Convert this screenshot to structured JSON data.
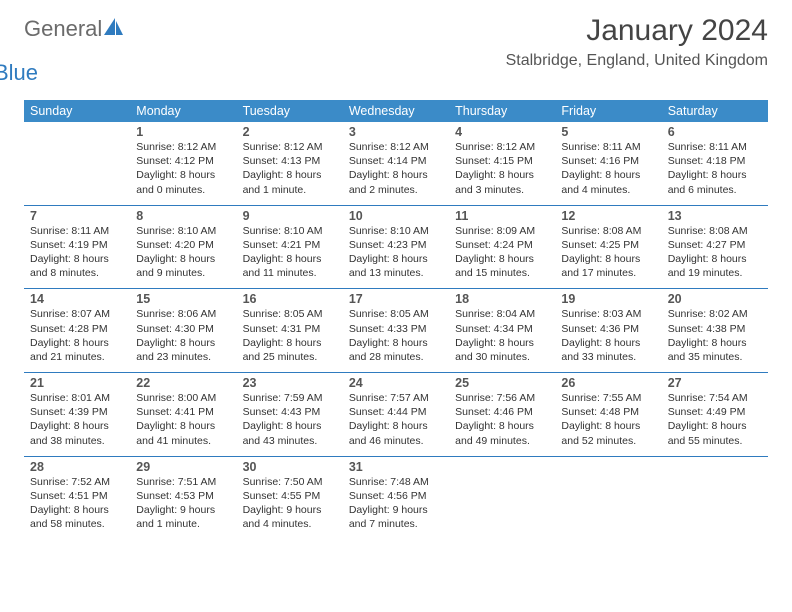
{
  "brand": {
    "word1": "General",
    "word2": "Blue",
    "color_general": "#6b6b6b",
    "color_blue": "#2f7bbf",
    "sail_color": "#2f7bbf"
  },
  "header": {
    "title": "January 2024",
    "subtitle": "Stalbridge, England, United Kingdom"
  },
  "theme": {
    "header_bg": "#3b8bc8",
    "header_fg": "#ffffff",
    "divider": "#2f7bbf",
    "text": "#333333",
    "daynum_color": "#555555",
    "background": "#ffffff"
  },
  "dayNames": [
    "Sunday",
    "Monday",
    "Tuesday",
    "Wednesday",
    "Thursday",
    "Friday",
    "Saturday"
  ],
  "weeks": [
    [
      null,
      {
        "n": "1",
        "sr": "8:12 AM",
        "ss": "4:12 PM",
        "dl": "8 hours and 0 minutes."
      },
      {
        "n": "2",
        "sr": "8:12 AM",
        "ss": "4:13 PM",
        "dl": "8 hours and 1 minute."
      },
      {
        "n": "3",
        "sr": "8:12 AM",
        "ss": "4:14 PM",
        "dl": "8 hours and 2 minutes."
      },
      {
        "n": "4",
        "sr": "8:12 AM",
        "ss": "4:15 PM",
        "dl": "8 hours and 3 minutes."
      },
      {
        "n": "5",
        "sr": "8:11 AM",
        "ss": "4:16 PM",
        "dl": "8 hours and 4 minutes."
      },
      {
        "n": "6",
        "sr": "8:11 AM",
        "ss": "4:18 PM",
        "dl": "8 hours and 6 minutes."
      }
    ],
    [
      {
        "n": "7",
        "sr": "8:11 AM",
        "ss": "4:19 PM",
        "dl": "8 hours and 8 minutes."
      },
      {
        "n": "8",
        "sr": "8:10 AM",
        "ss": "4:20 PM",
        "dl": "8 hours and 9 minutes."
      },
      {
        "n": "9",
        "sr": "8:10 AM",
        "ss": "4:21 PM",
        "dl": "8 hours and 11 minutes."
      },
      {
        "n": "10",
        "sr": "8:10 AM",
        "ss": "4:23 PM",
        "dl": "8 hours and 13 minutes."
      },
      {
        "n": "11",
        "sr": "8:09 AM",
        "ss": "4:24 PM",
        "dl": "8 hours and 15 minutes."
      },
      {
        "n": "12",
        "sr": "8:08 AM",
        "ss": "4:25 PM",
        "dl": "8 hours and 17 minutes."
      },
      {
        "n": "13",
        "sr": "8:08 AM",
        "ss": "4:27 PM",
        "dl": "8 hours and 19 minutes."
      }
    ],
    [
      {
        "n": "14",
        "sr": "8:07 AM",
        "ss": "4:28 PM",
        "dl": "8 hours and 21 minutes."
      },
      {
        "n": "15",
        "sr": "8:06 AM",
        "ss": "4:30 PM",
        "dl": "8 hours and 23 minutes."
      },
      {
        "n": "16",
        "sr": "8:05 AM",
        "ss": "4:31 PM",
        "dl": "8 hours and 25 minutes."
      },
      {
        "n": "17",
        "sr": "8:05 AM",
        "ss": "4:33 PM",
        "dl": "8 hours and 28 minutes."
      },
      {
        "n": "18",
        "sr": "8:04 AM",
        "ss": "4:34 PM",
        "dl": "8 hours and 30 minutes."
      },
      {
        "n": "19",
        "sr": "8:03 AM",
        "ss": "4:36 PM",
        "dl": "8 hours and 33 minutes."
      },
      {
        "n": "20",
        "sr": "8:02 AM",
        "ss": "4:38 PM",
        "dl": "8 hours and 35 minutes."
      }
    ],
    [
      {
        "n": "21",
        "sr": "8:01 AM",
        "ss": "4:39 PM",
        "dl": "8 hours and 38 minutes."
      },
      {
        "n": "22",
        "sr": "8:00 AM",
        "ss": "4:41 PM",
        "dl": "8 hours and 41 minutes."
      },
      {
        "n": "23",
        "sr": "7:59 AM",
        "ss": "4:43 PM",
        "dl": "8 hours and 43 minutes."
      },
      {
        "n": "24",
        "sr": "7:57 AM",
        "ss": "4:44 PM",
        "dl": "8 hours and 46 minutes."
      },
      {
        "n": "25",
        "sr": "7:56 AM",
        "ss": "4:46 PM",
        "dl": "8 hours and 49 minutes."
      },
      {
        "n": "26",
        "sr": "7:55 AM",
        "ss": "4:48 PM",
        "dl": "8 hours and 52 minutes."
      },
      {
        "n": "27",
        "sr": "7:54 AM",
        "ss": "4:49 PM",
        "dl": "8 hours and 55 minutes."
      }
    ],
    [
      {
        "n": "28",
        "sr": "7:52 AM",
        "ss": "4:51 PM",
        "dl": "8 hours and 58 minutes."
      },
      {
        "n": "29",
        "sr": "7:51 AM",
        "ss": "4:53 PM",
        "dl": "9 hours and 1 minute."
      },
      {
        "n": "30",
        "sr": "7:50 AM",
        "ss": "4:55 PM",
        "dl": "9 hours and 4 minutes."
      },
      {
        "n": "31",
        "sr": "7:48 AM",
        "ss": "4:56 PM",
        "dl": "9 hours and 7 minutes."
      },
      null,
      null,
      null
    ]
  ],
  "labels": {
    "sunrise": "Sunrise: ",
    "sunset": "Sunset: ",
    "daylight": "Daylight: "
  }
}
